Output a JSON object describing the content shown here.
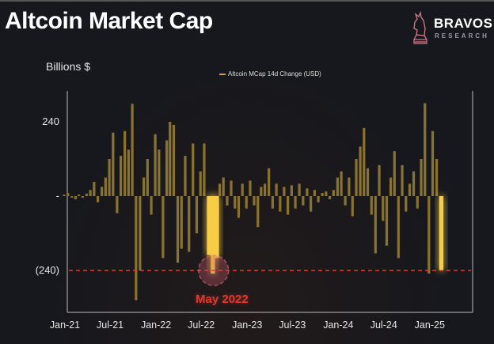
{
  "header": {
    "title": "Altcoin Market Cap"
  },
  "logo": {
    "brand": "BRAVOS",
    "sub": "RESEARCH",
    "icon": "horse-chess-knight-icon",
    "color": "#d47a86"
  },
  "chart_data": {
    "type": "bar",
    "title": "Altcoin Market Cap",
    "ylabel": "Billions $",
    "xlabel": "",
    "legend": {
      "position": "top-center",
      "entries": [
        "Altcoin MCap 14d Change (USD)"
      ]
    },
    "ylim": [
      -375,
      340
    ],
    "xlim": [
      "2021-01-01",
      "2025-06-15"
    ],
    "grid": false,
    "yticks": [
      {
        "value": 240,
        "label": "240"
      },
      {
        "value": 0,
        "label": "-"
      },
      {
        "value": -240,
        "label": "(240)"
      }
    ],
    "xticks": [
      {
        "date": "2021-01-01",
        "label": "Jan-21"
      },
      {
        "date": "2021-07-01",
        "label": "Jul-21"
      },
      {
        "date": "2022-01-01",
        "label": "Jan-22"
      },
      {
        "date": "2022-07-01",
        "label": "Jul-22"
      },
      {
        "date": "2023-01-01",
        "label": "Jan-23"
      },
      {
        "date": "2023-07-01",
        "label": "Jul-23"
      },
      {
        "date": "2024-01-01",
        "label": "Jan-24"
      },
      {
        "date": "2024-07-01",
        "label": "Jul-24"
      },
      {
        "date": "2025-01-01",
        "label": "Jan-25"
      }
    ],
    "colors": {
      "series": "#8a7331",
      "highlight": "#f7cd45",
      "reference": "#e2392f",
      "annotation": "#e2392f"
    },
    "reference_line": {
      "value": -240,
      "style": "dashed"
    },
    "annotation": {
      "label": "May 2022",
      "date": "2022-08-16",
      "value": -240
    },
    "series": [
      {
        "name": "Altcoin MCap 14d Change (USD)",
        "x": [
          "2021-01-01",
          "2021-01-16",
          "2021-02-01",
          "2021-02-16",
          "2021-03-01",
          "2021-03-16",
          "2021-04-01",
          "2021-04-16",
          "2021-05-01",
          "2021-05-16",
          "2021-06-01",
          "2021-06-16",
          "2021-07-01",
          "2021-07-16",
          "2021-08-01",
          "2021-08-16",
          "2021-09-01",
          "2021-09-16",
          "2021-10-01",
          "2021-10-16",
          "2021-11-01",
          "2021-11-16",
          "2021-12-01",
          "2021-12-16",
          "2022-01-01",
          "2022-01-16",
          "2022-02-01",
          "2022-02-16",
          "2022-03-01",
          "2022-03-16",
          "2022-04-01",
          "2022-04-16",
          "2022-05-01",
          "2022-05-16",
          "2022-06-01",
          "2022-06-16",
          "2022-07-01",
          "2022-07-16",
          "2022-08-01",
          "2022-08-16",
          "2022-09-01",
          "2022-09-16",
          "2022-10-01",
          "2022-10-16",
          "2022-11-01",
          "2022-11-16",
          "2022-12-01",
          "2022-12-16",
          "2023-01-01",
          "2023-01-16",
          "2023-02-01",
          "2023-02-16",
          "2023-03-01",
          "2023-03-16",
          "2023-04-01",
          "2023-04-16",
          "2023-05-01",
          "2023-05-16",
          "2023-06-01",
          "2023-06-16",
          "2023-07-01",
          "2023-07-16",
          "2023-08-01",
          "2023-08-16",
          "2023-09-01",
          "2023-09-16",
          "2023-10-01",
          "2023-10-16",
          "2023-11-01",
          "2023-11-16",
          "2023-12-01",
          "2023-12-16",
          "2024-01-01",
          "2024-01-16",
          "2024-02-01",
          "2024-02-16",
          "2024-03-01",
          "2024-03-16",
          "2024-04-01",
          "2024-04-16",
          "2024-05-01",
          "2024-05-16",
          "2024-06-01",
          "2024-06-16",
          "2024-07-01",
          "2024-07-16",
          "2024-08-01",
          "2024-08-16",
          "2024-09-01",
          "2024-09-16",
          "2024-10-01",
          "2024-10-16",
          "2024-11-01",
          "2024-11-16",
          "2024-12-01",
          "2024-12-16",
          "2025-01-01",
          "2025-01-16",
          "2025-02-01",
          "2025-02-16"
        ],
        "values": [
          5,
          10,
          -5,
          -10,
          5,
          -5,
          8,
          20,
          46,
          -20,
          30,
          60,
          120,
          205,
          -55,
          130,
          210,
          150,
          298,
          -336,
          -240,
          60,
          120,
          -60,
          200,
          150,
          -200,
          180,
          240,
          230,
          -215,
          -170,
          130,
          -180,
          170,
          -120,
          80,
          170,
          -190,
          -250,
          -200,
          40,
          60,
          -30,
          50,
          -40,
          -70,
          40,
          -40,
          50,
          -30,
          -100,
          30,
          40,
          90,
          -40,
          40,
          -50,
          30,
          -60,
          35,
          -40,
          40,
          -30,
          25,
          -50,
          20,
          -20,
          10,
          15,
          -10,
          20,
          60,
          80,
          -30,
          60,
          -65,
          120,
          160,
          220,
          90,
          -60,
          -185,
          100,
          -80,
          -160,
          60,
          145,
          -200,
          100,
          -50,
          40,
          80,
          -40,
          120,
          300,
          -250,
          210,
          120,
          -240
        ],
        "highlighted": [
          "2022-08-01",
          "2022-08-16",
          "2022-09-01",
          "2025-02-16"
        ]
      }
    ]
  }
}
